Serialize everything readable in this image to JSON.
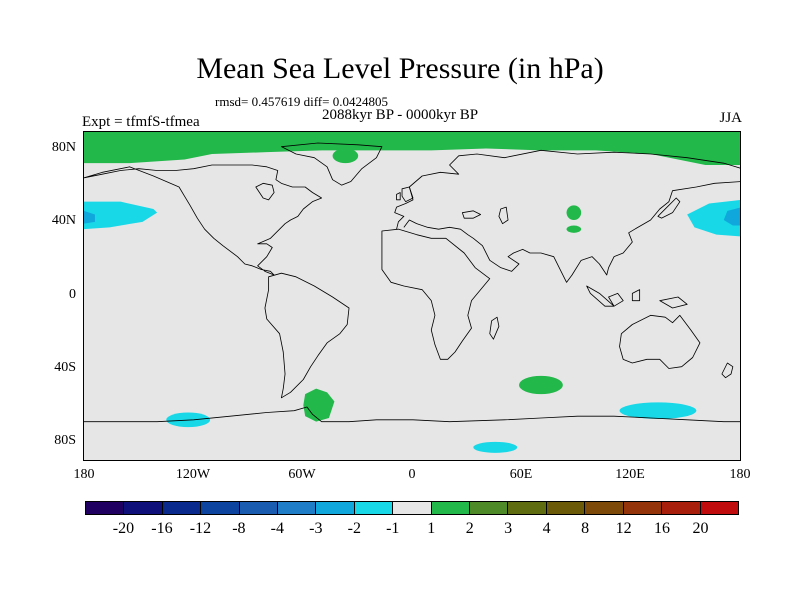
{
  "title": "Mean Sea Level Pressure (in hPa)",
  "stats": "rmsd= 0.457619 diff= 0.0424805",
  "period": "2088kyr BP - 0000kyr BP",
  "experiment": "Expt = tfmfS-tfmea",
  "season": "JJA",
  "lat_labels": [
    "80N",
    "40N",
    "0",
    "40S",
    "80S"
  ],
  "lon_labels": [
    "180",
    "120W",
    "60W",
    "0",
    "60E",
    "120E",
    "180"
  ],
  "colorbar": {
    "colors": [
      "#200060",
      "#10107a",
      "#0a2a8e",
      "#0c44a0",
      "#1a5cb0",
      "#1f7dc8",
      "#10a8dc",
      "#18d8e8",
      "#e6e6e6",
      "#22b84a",
      "#4e8a28",
      "#5f6d10",
      "#6b5a08",
      "#7e4a0a",
      "#93340a",
      "#a8200c",
      "#c00c0c"
    ],
    "labels": [
      "-20",
      "-16",
      "-12",
      "-8",
      "-4",
      "-3",
      "-2",
      "-1",
      "1",
      "2",
      "3",
      "4",
      "8",
      "12",
      "16",
      "20"
    ]
  },
  "palette": {
    "background_fill": "#e6e6e6",
    "positive_fill": "#22b84a",
    "negative_fill": "#18d8e8",
    "negative_fill_strong": "#10a8dc"
  }
}
